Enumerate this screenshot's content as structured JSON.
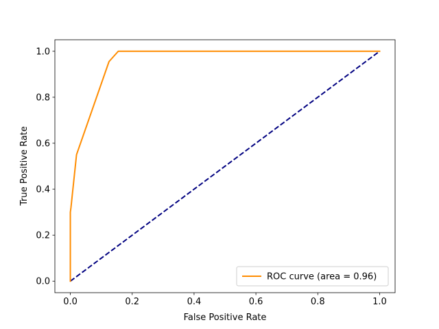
{
  "chart_data": {
    "type": "line",
    "title": "",
    "xlabel": "False Positive Rate",
    "ylabel": "True Positive Rate",
    "xlim": [
      -0.05,
      1.05
    ],
    "ylim": [
      -0.05,
      1.05
    ],
    "xticks": [
      0.0,
      0.2,
      0.4,
      0.6,
      0.8,
      1.0
    ],
    "xtick_labels": [
      "0.0",
      "0.2",
      "0.4",
      "0.6",
      "0.8",
      "1.0"
    ],
    "yticks": [
      0.0,
      0.2,
      0.4,
      0.6,
      0.8,
      1.0
    ],
    "ytick_labels": [
      "0.0",
      "0.2",
      "0.4",
      "0.6",
      "0.8",
      "1.0"
    ],
    "grid": false,
    "legend_position": "lower-right",
    "series": [
      {
        "name": "ROC curve (area = 0.96)",
        "color": "#ff8c00",
        "style": "solid",
        "x": [
          0.0,
          0.0,
          0.002,
          0.02,
          0.125,
          0.155,
          1.0
        ],
        "y": [
          0.0,
          0.3,
          0.32,
          0.55,
          0.955,
          1.0,
          1.0
        ]
      },
      {
        "name": "",
        "color": "#000080",
        "style": "dashed",
        "x": [
          0.0,
          1.0
        ],
        "y": [
          0.0,
          1.0
        ]
      }
    ]
  }
}
